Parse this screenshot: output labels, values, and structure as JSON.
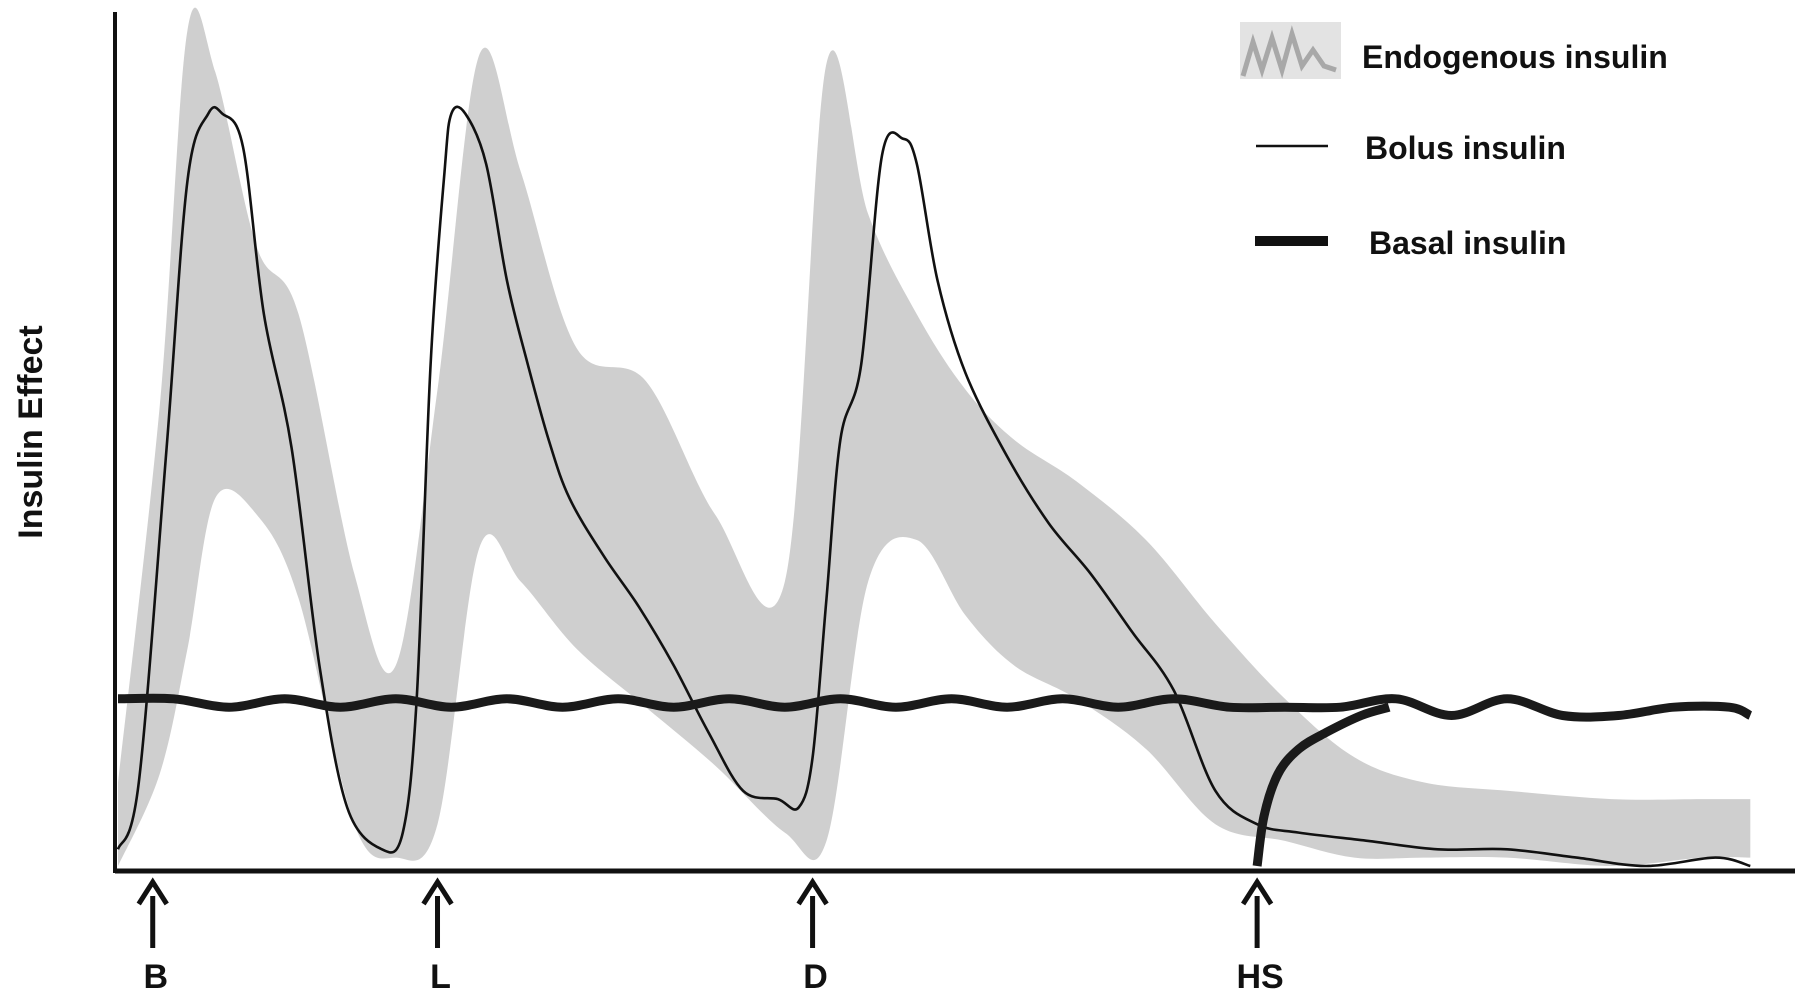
{
  "chart_data": {
    "type": "line",
    "ylabel": "Insulin Effect",
    "xlabel": "",
    "x_range": [
      0,
      24
    ],
    "ylim": [
      0,
      100
    ],
    "grid": false,
    "legend_position": "top-right",
    "legend": [
      {
        "label": "Endogenous insulin",
        "style": "band"
      },
      {
        "label": "Bolus insulin",
        "style": "thin-line"
      },
      {
        "label": "Basal insulin",
        "style": "thick-line"
      }
    ],
    "markers": [
      {
        "label": "B",
        "x": 0.5
      },
      {
        "label": "L",
        "x": 4.6
      },
      {
        "label": "D",
        "x": 10.0
      },
      {
        "label": "HS",
        "x": 16.4
      }
    ],
    "series": [
      {
        "name": "Endogenous insulin",
        "kind": "band",
        "color": "#cfcfcf",
        "x": [
          0,
          0.6,
          1.0,
          1.4,
          2.0,
          2.6,
          3.4,
          4.0,
          4.6,
          5.2,
          5.8,
          6.6,
          7.6,
          8.6,
          9.6,
          10.2,
          10.8,
          11.5,
          12.2,
          12.9,
          13.8,
          14.8,
          15.8,
          16.8,
          17.8,
          18.8,
          20.0,
          21.5,
          22.8,
          23.5
        ],
        "upper": [
          10,
          55,
          100,
          95,
          74,
          66,
          35,
          24,
          57,
          97,
          83,
          62,
          58,
          42,
          34,
          96,
          78,
          66,
          57,
          51,
          46,
          39,
          29,
          20,
          13,
          10,
          9,
          8,
          8,
          8
        ],
        "lower": [
          0,
          11,
          26,
          44,
          42,
          32,
          5,
          1,
          5,
          38,
          34,
          26,
          19,
          12,
          4,
          3,
          34,
          39,
          30,
          24,
          20,
          14,
          5,
          3,
          1,
          1,
          1,
          0,
          1,
          1
        ]
      },
      {
        "name": "Bolus insulin",
        "kind": "line",
        "color": "#111111",
        "x": [
          0,
          0.3,
          0.7,
          1.0,
          1.3,
          1.5,
          1.8,
          2.1,
          2.5,
          2.9,
          3.3,
          3.8,
          4.1,
          4.3,
          4.5,
          4.7,
          4.8,
          5.0,
          5.3,
          5.6,
          5.9,
          6.2,
          6.5,
          7.0,
          7.5,
          8.0,
          8.5,
          9.0,
          9.5,
          9.8,
          10.0,
          10.2,
          10.4,
          10.7,
          11.0,
          11.3,
          11.5,
          11.8,
          12.2,
          12.8,
          13.4,
          14.0,
          14.6,
          15.2,
          15.8,
          16.4,
          17.0,
          18.0,
          19.0,
          20.0,
          21.0,
          22.0,
          23.0,
          23.5
        ],
        "y": [
          2,
          10,
          50,
          82,
          90,
          90,
          86,
          66,
          50,
          24,
          7,
          2,
          4,
          20,
          60,
          83,
          90,
          90,
          84,
          70,
          60,
          51,
          44,
          37,
          31,
          24,
          16,
          9,
          8,
          7,
          13,
          32,
          51,
          60,
          85,
          87,
          84,
          70,
          59,
          49,
          41,
          35,
          28,
          21,
          9,
          5,
          4,
          3,
          2,
          2,
          1,
          0,
          1,
          0
        ]
      },
      {
        "name": "Basal insulin",
        "kind": "line",
        "style": "thick",
        "color": "#1a1a1a",
        "x": [
          0,
          0.8,
          1.6,
          2.4,
          3.2,
          4.0,
          4.8,
          5.6,
          6.4,
          7.2,
          8.0,
          8.8,
          9.6,
          10.4,
          11.2,
          12.0,
          12.8,
          13.6,
          14.4,
          15.2,
          16.0,
          16.8,
          17.6,
          18.4,
          19.2,
          20.0,
          20.8,
          21.6,
          22.4,
          23.2,
          23.5
        ],
        "y": [
          20,
          20,
          19,
          20,
          19,
          20,
          19,
          20,
          19,
          20,
          19,
          20,
          19,
          20,
          19,
          20,
          19,
          20,
          19,
          20,
          19,
          19,
          19,
          20,
          18,
          20,
          18,
          18,
          19,
          19,
          18
        ]
      },
      {
        "name": "Basal insulin (HS dose)",
        "kind": "line",
        "style": "thick",
        "color": "#1a1a1a",
        "x": [
          16.4,
          16.5,
          16.7,
          17.0,
          17.4,
          17.9,
          18.3
        ],
        "y": [
          0,
          6,
          11,
          14,
          16,
          18,
          19
        ]
      }
    ]
  }
}
